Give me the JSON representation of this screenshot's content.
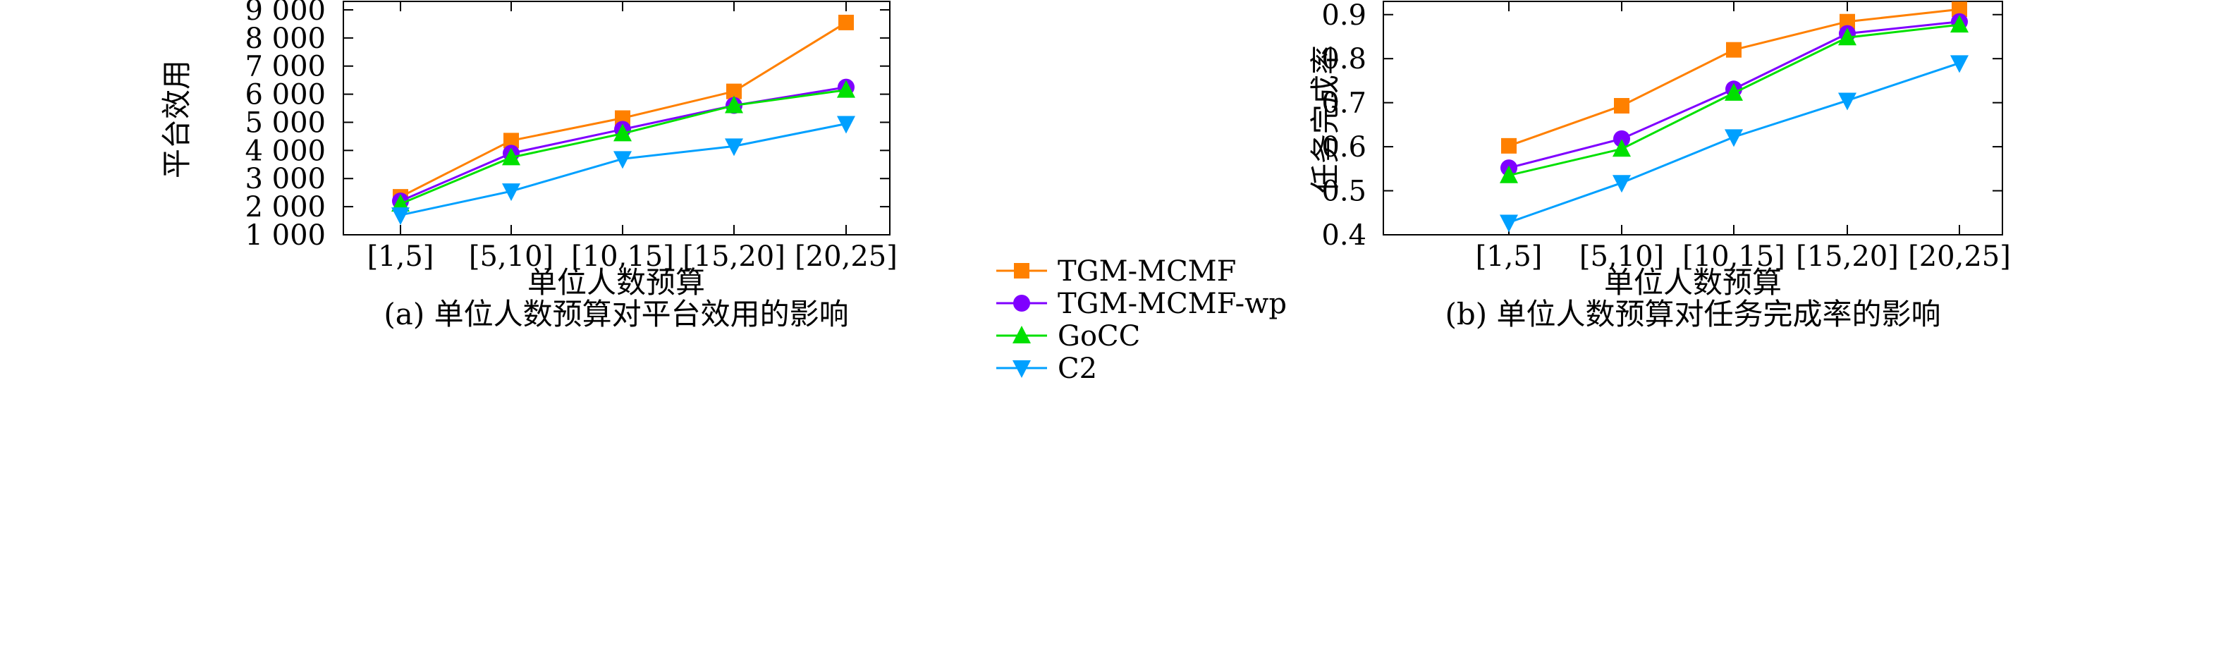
{
  "legend": {
    "placement": "bottom-center",
    "entries": [
      {
        "name": "TGM-MCMF",
        "color": "#ff8000",
        "marker": "square"
      },
      {
        "name": "TGM-MCMF-wp",
        "color": "#7f00ff",
        "marker": "circle"
      },
      {
        "name": "GoCC",
        "color": "#00e000",
        "marker": "triangle-up"
      },
      {
        "name": "C2",
        "color": "#00a0ff",
        "marker": "triangle-down"
      }
    ]
  },
  "chart_data": [
    {
      "type": "line",
      "caption": "(a) 单位人数预算对平台效用的影响",
      "xlabel": "单位人数预算",
      "ylabel": "平台效用",
      "categories": [
        "[1,5]",
        "[5,10]",
        "[10,15]",
        "[15,20]",
        "[20,25]"
      ],
      "ylim": [
        1000,
        9300
      ],
      "yticks": [
        1000,
        2000,
        3000,
        4000,
        5000,
        6000,
        7000,
        8000,
        9000
      ],
      "ytick_labels": [
        "1 000",
        "2 000",
        "3 000",
        "4 000",
        "5 000",
        "6 000",
        "7 000",
        "8 000",
        "9 000"
      ],
      "grid": false,
      "series": [
        {
          "name": "TGM-MCMF",
          "values": [
            2350,
            4350,
            5150,
            6100,
            8550
          ]
        },
        {
          "name": "TGM-MCMF-wp",
          "values": [
            2200,
            3900,
            4750,
            5600,
            6250
          ]
        },
        {
          "name": "GoCC",
          "values": [
            2100,
            3750,
            4600,
            5600,
            6150
          ]
        },
        {
          "name": "C2",
          "values": [
            1700,
            2550,
            3700,
            4150,
            4950
          ]
        }
      ]
    },
    {
      "type": "line",
      "caption": "(b) 单位人数预算对任务完成率的影响",
      "xlabel": "单位人数预算",
      "ylabel": "任务完成率",
      "categories": [
        "[1,5]",
        "[5,10]",
        "[10,15]",
        "[15,20]",
        "[20,25]"
      ],
      "ylim": [
        0.4,
        0.93
      ],
      "yticks": [
        0.4,
        0.5,
        0.6,
        0.7,
        0.8,
        0.9
      ],
      "ytick_labels": [
        "0.4",
        "0.5",
        "0.6",
        "0.7",
        "0.8",
        "0.9"
      ],
      "grid": false,
      "series": [
        {
          "name": "TGM-MCMF",
          "values": [
            0.602,
            0.693,
            0.82,
            0.884,
            0.912
          ]
        },
        {
          "name": "TGM-MCMF-wp",
          "values": [
            0.552,
            0.618,
            0.731,
            0.857,
            0.884
          ]
        },
        {
          "name": "GoCC",
          "values": [
            0.535,
            0.595,
            0.722,
            0.848,
            0.877
          ]
        },
        {
          "name": "C2",
          "values": [
            0.428,
            0.518,
            0.622,
            0.705,
            0.79
          ]
        }
      ]
    }
  ]
}
